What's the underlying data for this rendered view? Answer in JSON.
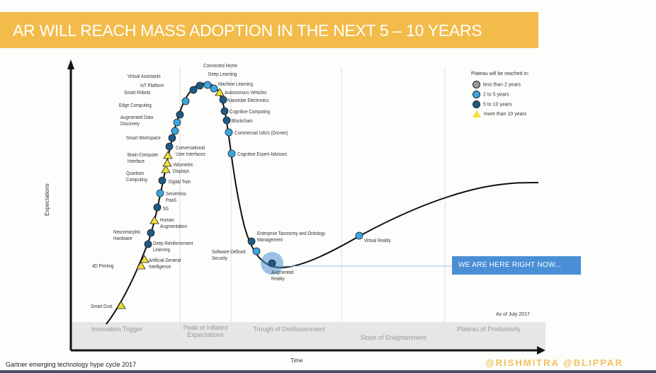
{
  "slide": {
    "title": "AR WILL REACH MASS ADOPTION IN THE NEXT 5 – 10 YEARS",
    "caption": "Gartner emerging technology hype cycle 2017",
    "credit": "@RISHMITRA  @BLIPPAR",
    "callout": "WE ARE HERE RIGHT NOW...",
    "colors": {
      "title_band": "#f2bb4a",
      "callout": "#4a8fd6",
      "credit": "#f2c060"
    }
  },
  "diagram": {
    "y_axis_label": "Expectations",
    "x_axis_label": "Time",
    "as_of": "As of July 2017",
    "phases": [
      {
        "label": "Innovation Trigger"
      },
      {
        "label": "Peak of Inflated Expectations"
      },
      {
        "label": "Trough of Disillusionment"
      },
      {
        "label": "Slope of Enlightenment"
      },
      {
        "label": "Plateau of Productivity"
      }
    ],
    "legend": {
      "title": "Plateau will be reached in:",
      "items": [
        {
          "key": "lt2",
          "label": "less than 2 years",
          "color": "#9a9a9a",
          "shape": "circle"
        },
        {
          "key": "2to5",
          "label": "2 to 5 years",
          "color": "#3aa7e0",
          "shape": "circle"
        },
        {
          "key": "5to10",
          "label": "5 to 10 years",
          "color": "#1d5a85",
          "shape": "circle"
        },
        {
          "key": "gt10",
          "label": "more than 10 years",
          "color": "#f0e030",
          "shape": "triangle"
        }
      ]
    },
    "technologies": [
      {
        "name": "Smart Dust",
        "plateau": "gt10"
      },
      {
        "name": "4D Printing",
        "plateau": "gt10"
      },
      {
        "name": "Artificial General Intelligence",
        "plateau": "gt10"
      },
      {
        "name": "Deep Reinforcement Learning",
        "plateau": "5to10"
      },
      {
        "name": "Neuromorphic Hardware",
        "plateau": "5to10"
      },
      {
        "name": "Human Augmentation",
        "plateau": "gt10"
      },
      {
        "name": "5G",
        "plateau": "5to10"
      },
      {
        "name": "Serverless PaaS",
        "plateau": "2to5"
      },
      {
        "name": "Digital Twin",
        "plateau": "5to10"
      },
      {
        "name": "Quantum Computing",
        "plateau": "gt10"
      },
      {
        "name": "Volumetric Displays",
        "plateau": "gt10"
      },
      {
        "name": "Brain-Computer Interface",
        "plateau": "gt10"
      },
      {
        "name": "Conversational User Interfaces",
        "plateau": "5to10"
      },
      {
        "name": "Smart Workspace",
        "plateau": "5to10"
      },
      {
        "name": "Augmented Data Discovery",
        "plateau": "2to5"
      },
      {
        "name": "Edge Computing",
        "plateau": "2to5"
      },
      {
        "name": "Smart Robots",
        "plateau": "5to10"
      },
      {
        "name": "IoT Platform",
        "plateau": "2to5"
      },
      {
        "name": "Virtual Assistants",
        "plateau": "5to10"
      },
      {
        "name": "Connected Home",
        "plateau": "5to10"
      },
      {
        "name": "Deep Learning",
        "plateau": "2to5"
      },
      {
        "name": "Machine Learning",
        "plateau": "2to5"
      },
      {
        "name": "Autonomous Vehicles",
        "plateau": "gt10"
      },
      {
        "name": "Nanotube Electronics",
        "plateau": "5to10"
      },
      {
        "name": "Cognitive Computing",
        "plateau": "5to10"
      },
      {
        "name": "Blockchain",
        "plateau": "5to10"
      },
      {
        "name": "Commercial UAVs (Drones)",
        "plateau": "2to5"
      },
      {
        "name": "Cognitive Expert Advisors",
        "plateau": "2to5"
      },
      {
        "name": "Enterprise Taxonomy and Ontology Management",
        "plateau": "5to10"
      },
      {
        "name": "Software-Defined Security",
        "plateau": "2to5"
      },
      {
        "name": "Augmented Reality",
        "plateau": "5to10"
      },
      {
        "name": "Virtual Reality",
        "plateau": "2to5"
      }
    ]
  }
}
